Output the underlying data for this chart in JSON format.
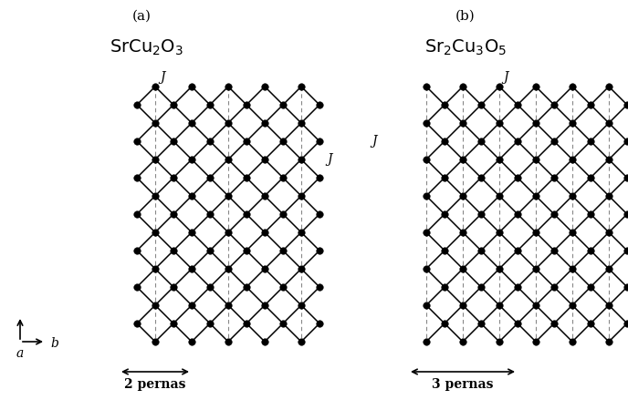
{
  "fig_width": 6.88,
  "fig_height": 4.5,
  "bg_color": "#ffffff",
  "title_a": "$\\mathrm{SrCu_2O_3}$",
  "title_b": "$\\mathrm{Sr_2Cu_3O_5}$",
  "label_a": "(a)",
  "label_b": "(b)",
  "label_2legs": "2 pernas",
  "label_3legs": "3 pernas",
  "J_label": "J",
  "dot_color": "#000000",
  "line_color": "#000000",
  "dash_color": "#888888",
  "lw_solid": 1.1,
  "lw_dash": 0.8,
  "dot_size": 5.5,
  "s": 20
}
